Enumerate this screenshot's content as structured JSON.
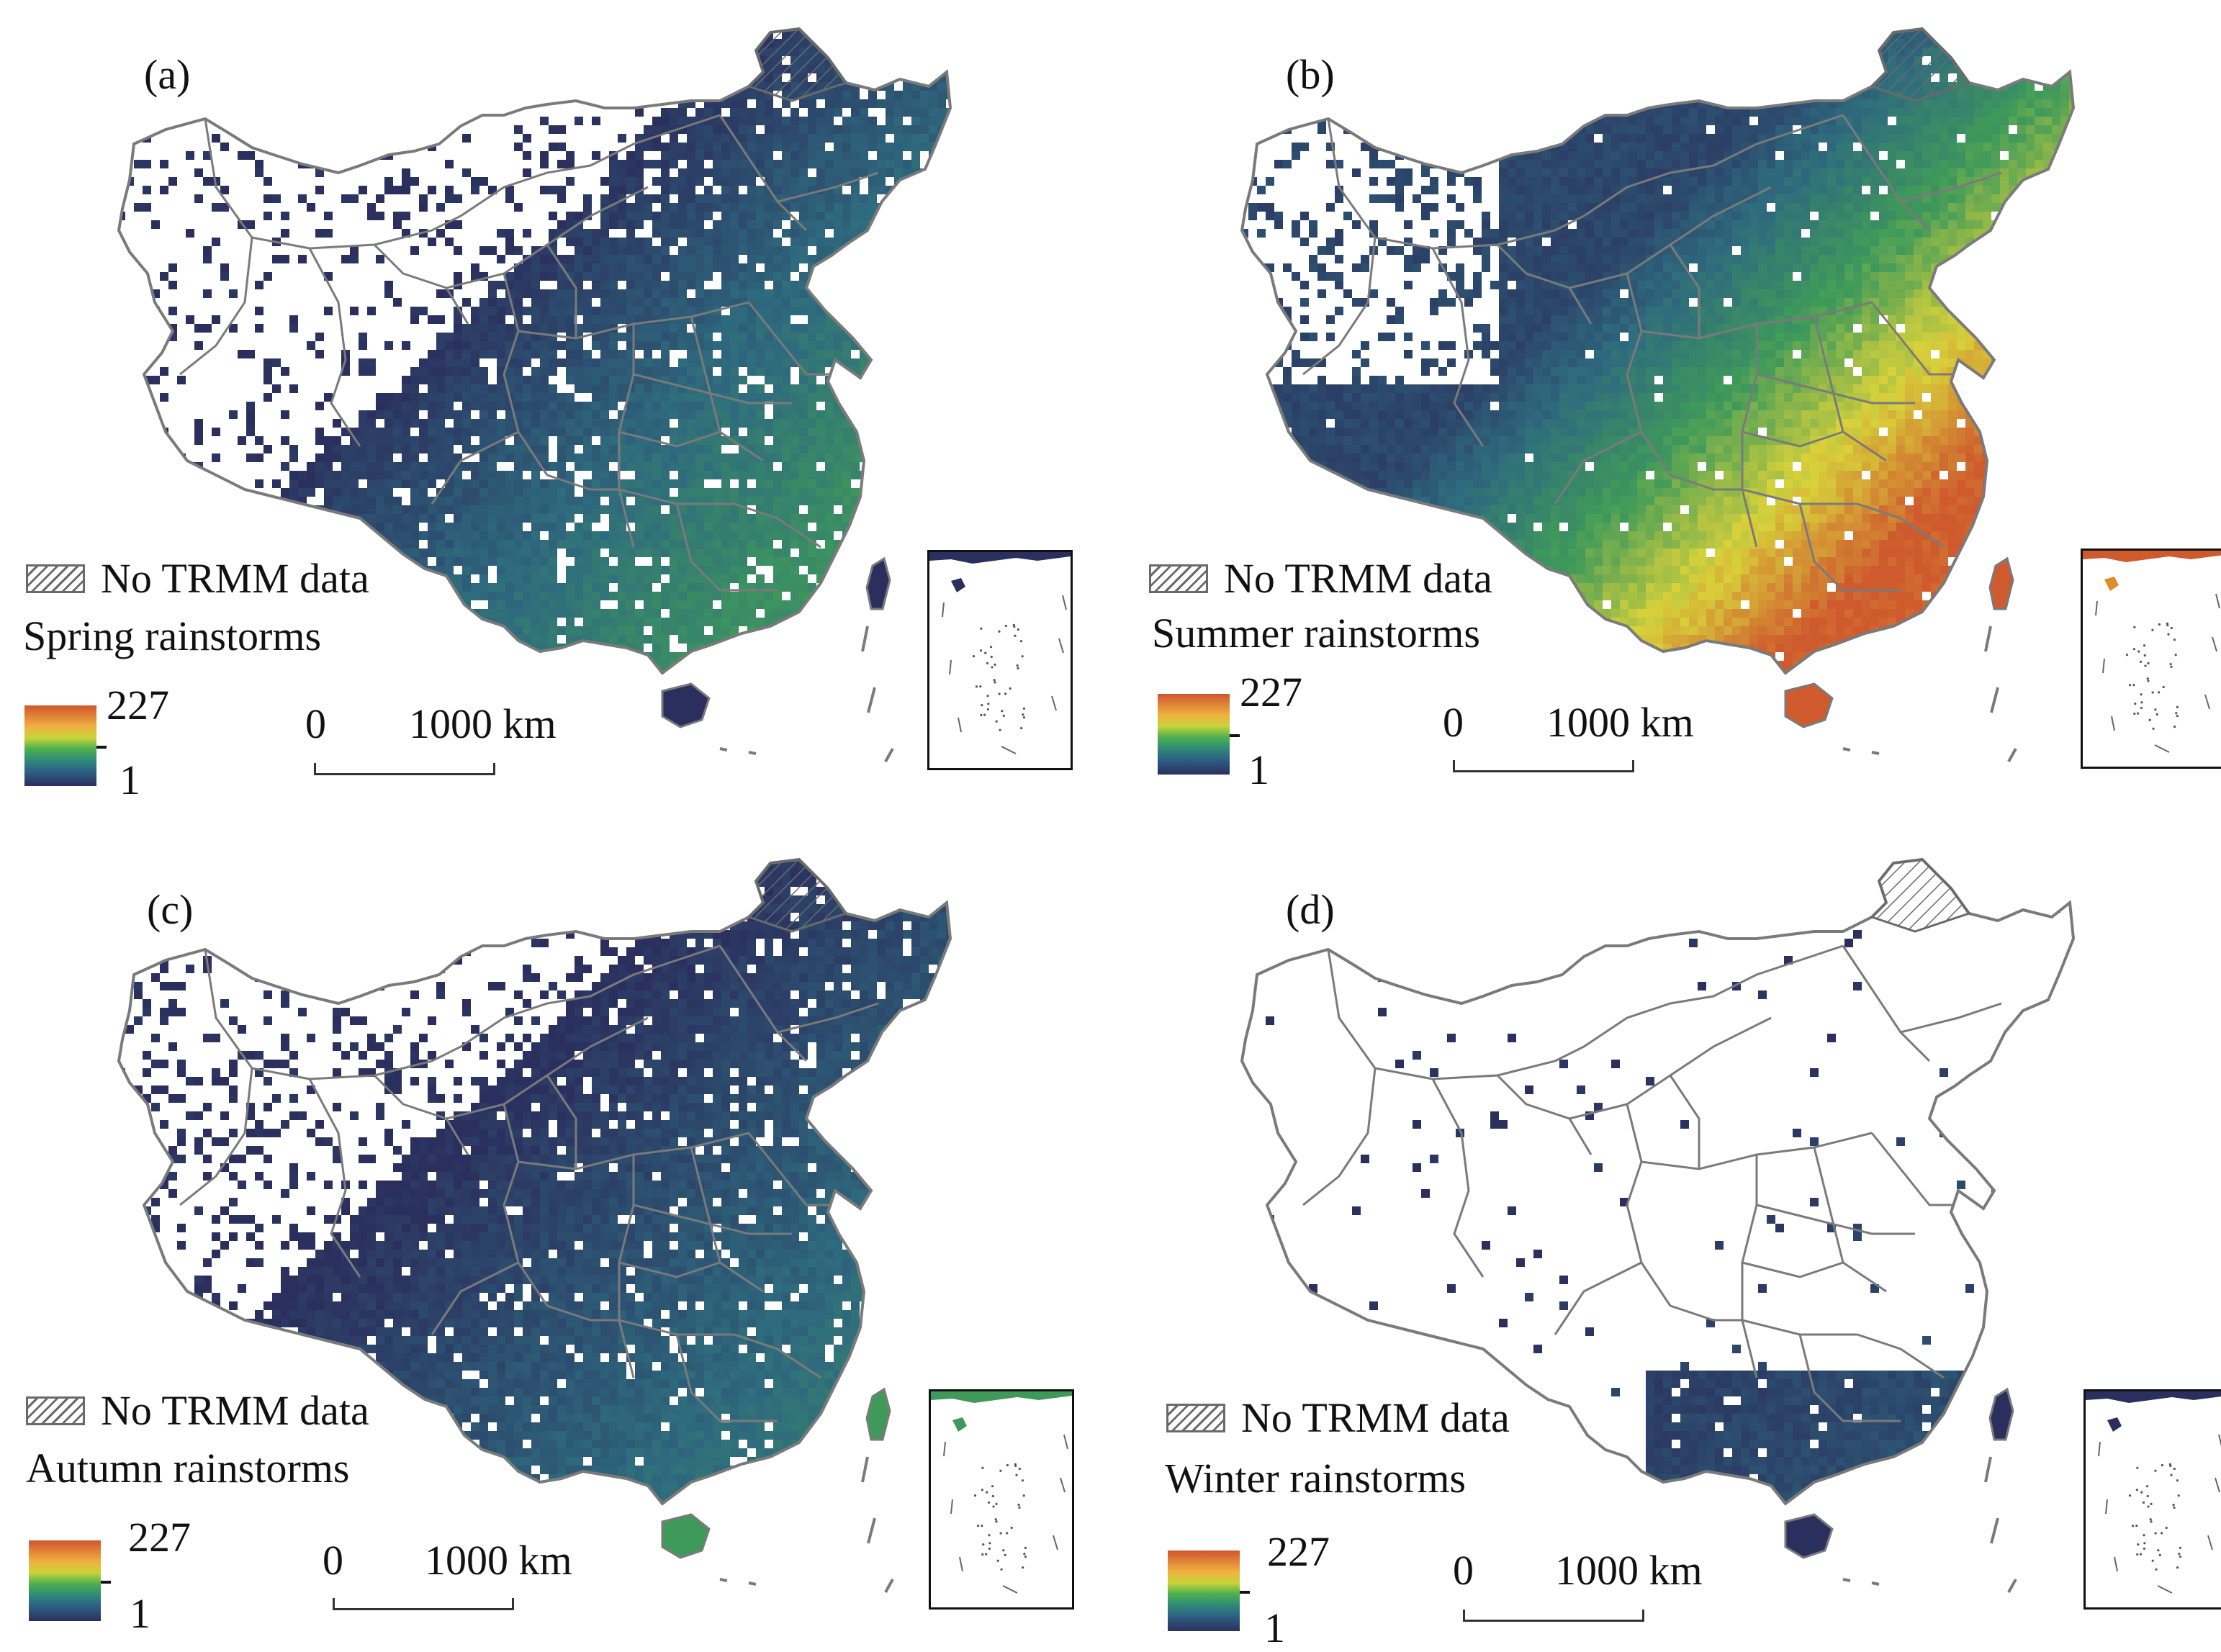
{
  "panels": [
    {
      "id": "a",
      "label": "(a)",
      "season": "Spring rainstorms",
      "scheme": "spring"
    },
    {
      "id": "b",
      "label": "(b)",
      "season": "Summer rainstorms",
      "scheme": "summer"
    },
    {
      "id": "c",
      "label": "(c)",
      "season": "Autumn rainstorms",
      "scheme": "autumn"
    },
    {
      "id": "d",
      "label": "(d)",
      "season": "Winter rainstorms",
      "scheme": "winter"
    }
  ],
  "legend": {
    "no_data": "No TRMM data",
    "colorbar_max": "227",
    "colorbar_min": "1"
  },
  "scale_bar": {
    "zero": "0",
    "distance": "1000 km"
  },
  "colors": {
    "boundary": "#7a7a7a",
    "low": "#2b2f5e",
    "mid_low": "#2e6a7e",
    "mid": "#3f9a5a",
    "mid_high": "#d8d23a",
    "high": "#cf5a2e"
  }
}
